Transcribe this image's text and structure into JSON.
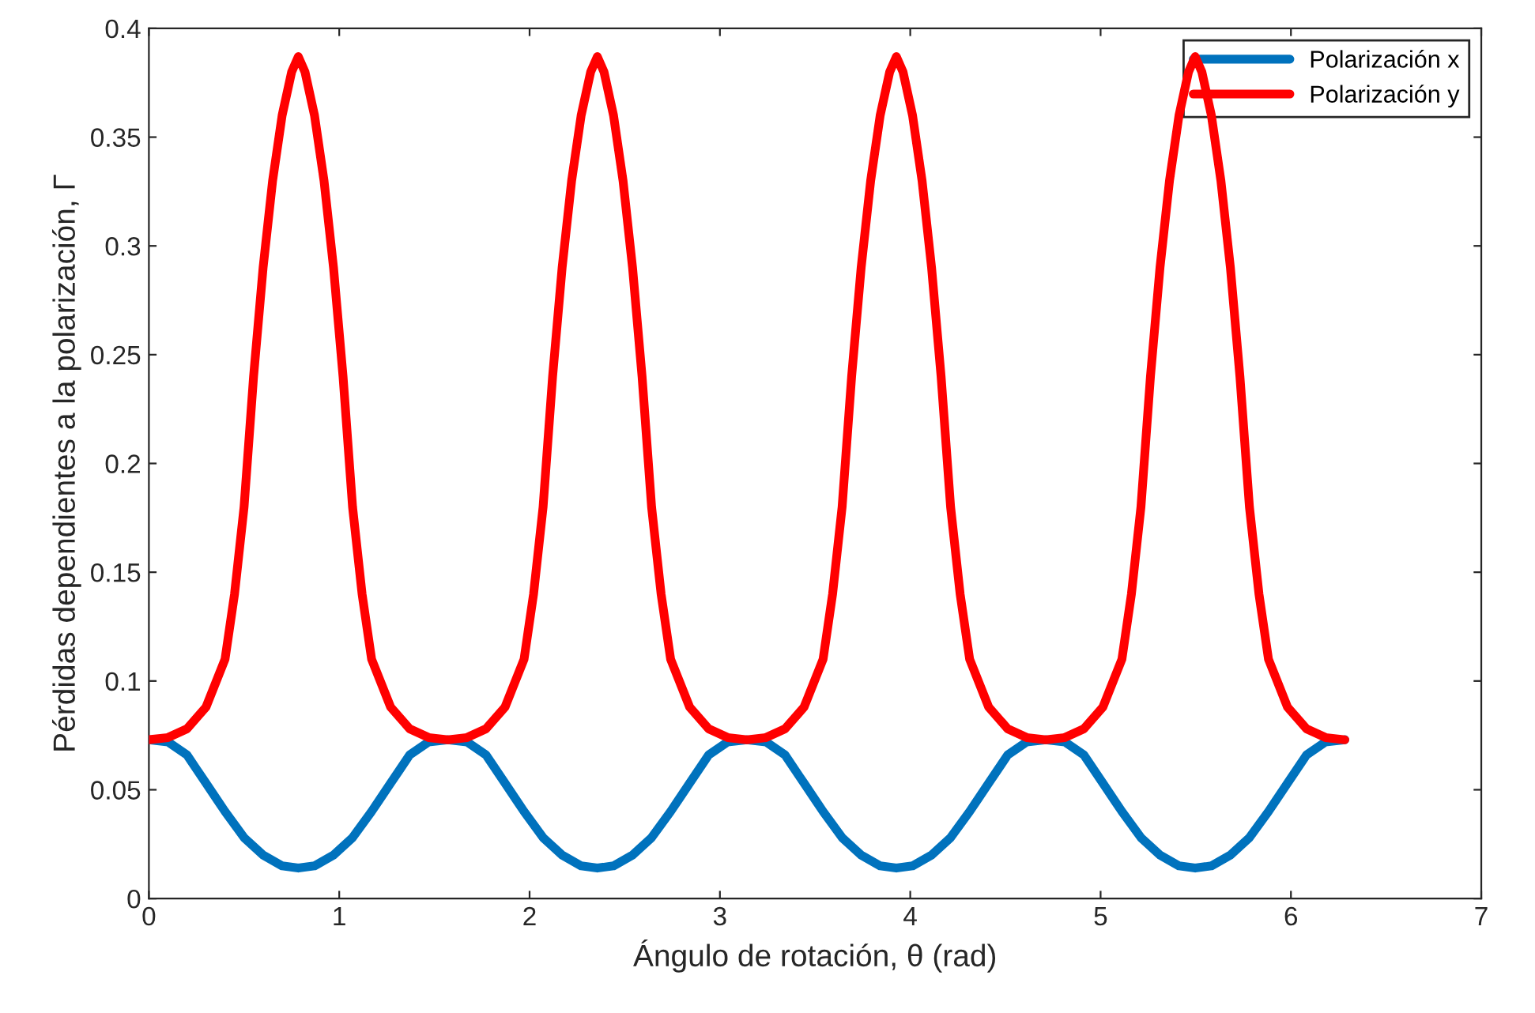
{
  "chart_data": {
    "type": "line",
    "xlabel": "Ángulo de rotación, θ (rad)",
    "ylabel": "Pérdidas dependientes a la polarización, Γ",
    "xlim": [
      0,
      7
    ],
    "xticks": [
      0,
      1,
      2,
      3,
      4,
      5,
      6,
      7
    ],
    "ylim": [
      0,
      0.4
    ],
    "yticks": [
      0,
      0.05,
      0.1,
      0.15,
      0.2,
      0.25,
      0.3,
      0.35,
      0.4
    ],
    "grid": false,
    "legend": "top right",
    "line_style": "solid",
    "marker": "none",
    "series": [
      {
        "name": "Polarización x",
        "color": "#0072bd",
        "x": [
          0,
          0.1,
          0.2,
          0.3,
          0.4,
          0.5,
          0.6,
          0.7,
          0.785,
          0.87,
          0.97,
          1.07,
          1.17,
          1.27,
          1.37,
          1.47,
          1.571,
          1.671,
          1.771,
          1.871,
          1.971,
          2.071,
          2.171,
          2.271,
          2.356,
          2.441,
          2.541,
          2.641,
          2.741,
          2.841,
          2.941,
          3.041,
          3.142,
          3.242,
          3.342,
          3.442,
          3.542,
          3.642,
          3.742,
          3.842,
          3.927,
          4.012,
          4.112,
          4.212,
          4.312,
          4.412,
          4.512,
          4.612,
          4.712,
          4.812,
          4.912,
          5.012,
          5.112,
          5.212,
          5.312,
          5.412,
          5.497,
          5.582,
          5.682,
          5.782,
          5.882,
          5.982,
          6.082,
          6.182,
          6.283
        ],
        "values": [
          0.073,
          0.072,
          0.066,
          0.053,
          0.04,
          0.028,
          0.02,
          0.015,
          0.014,
          0.015,
          0.02,
          0.028,
          0.04,
          0.053,
          0.066,
          0.072,
          0.073,
          0.072,
          0.066,
          0.053,
          0.04,
          0.028,
          0.02,
          0.015,
          0.014,
          0.015,
          0.02,
          0.028,
          0.04,
          0.053,
          0.066,
          0.072,
          0.073,
          0.072,
          0.066,
          0.053,
          0.04,
          0.028,
          0.02,
          0.015,
          0.014,
          0.015,
          0.02,
          0.028,
          0.04,
          0.053,
          0.066,
          0.072,
          0.073,
          0.072,
          0.066,
          0.053,
          0.04,
          0.028,
          0.02,
          0.015,
          0.014,
          0.015,
          0.02,
          0.028,
          0.04,
          0.053,
          0.066,
          0.072,
          0.073
        ]
      },
      {
        "name": "Polarización y",
        "color": "#ff0000",
        "x": [
          0,
          0.1,
          0.2,
          0.3,
          0.4,
          0.45,
          0.5,
          0.55,
          0.6,
          0.65,
          0.7,
          0.75,
          0.785,
          0.82,
          0.87,
          0.92,
          0.97,
          1.02,
          1.07,
          1.12,
          1.17,
          1.27,
          1.37,
          1.47,
          1.571,
          1.671,
          1.771,
          1.871,
          1.971,
          2.021,
          2.071,
          2.121,
          2.171,
          2.221,
          2.271,
          2.321,
          2.356,
          2.391,
          2.441,
          2.491,
          2.541,
          2.591,
          2.641,
          2.691,
          2.741,
          2.841,
          2.941,
          3.041,
          3.142,
          3.242,
          3.342,
          3.442,
          3.542,
          3.592,
          3.642,
          3.692,
          3.742,
          3.792,
          3.842,
          3.892,
          3.927,
          3.962,
          4.012,
          4.062,
          4.112,
          4.162,
          4.212,
          4.262,
          4.312,
          4.412,
          4.512,
          4.612,
          4.712,
          4.812,
          4.912,
          5.012,
          5.112,
          5.162,
          5.212,
          5.262,
          5.312,
          5.362,
          5.412,
          5.462,
          5.497,
          5.532,
          5.582,
          5.632,
          5.682,
          5.732,
          5.782,
          5.832,
          5.882,
          5.982,
          6.082,
          6.182,
          6.283
        ],
        "values": [
          0.073,
          0.074,
          0.078,
          0.088,
          0.11,
          0.14,
          0.18,
          0.24,
          0.29,
          0.33,
          0.36,
          0.38,
          0.387,
          0.38,
          0.36,
          0.33,
          0.29,
          0.24,
          0.18,
          0.14,
          0.11,
          0.088,
          0.078,
          0.074,
          0.073,
          0.074,
          0.078,
          0.088,
          0.11,
          0.14,
          0.18,
          0.24,
          0.29,
          0.33,
          0.36,
          0.38,
          0.387,
          0.38,
          0.36,
          0.33,
          0.29,
          0.24,
          0.18,
          0.14,
          0.11,
          0.088,
          0.078,
          0.074,
          0.073,
          0.074,
          0.078,
          0.088,
          0.11,
          0.14,
          0.18,
          0.24,
          0.29,
          0.33,
          0.36,
          0.38,
          0.387,
          0.38,
          0.36,
          0.33,
          0.29,
          0.24,
          0.18,
          0.14,
          0.11,
          0.088,
          0.078,
          0.074,
          0.073,
          0.074,
          0.078,
          0.088,
          0.11,
          0.14,
          0.18,
          0.24,
          0.29,
          0.33,
          0.36,
          0.38,
          0.387,
          0.38,
          0.36,
          0.33,
          0.29,
          0.24,
          0.18,
          0.14,
          0.11,
          0.088,
          0.078,
          0.074,
          0.073
        ]
      }
    ]
  }
}
